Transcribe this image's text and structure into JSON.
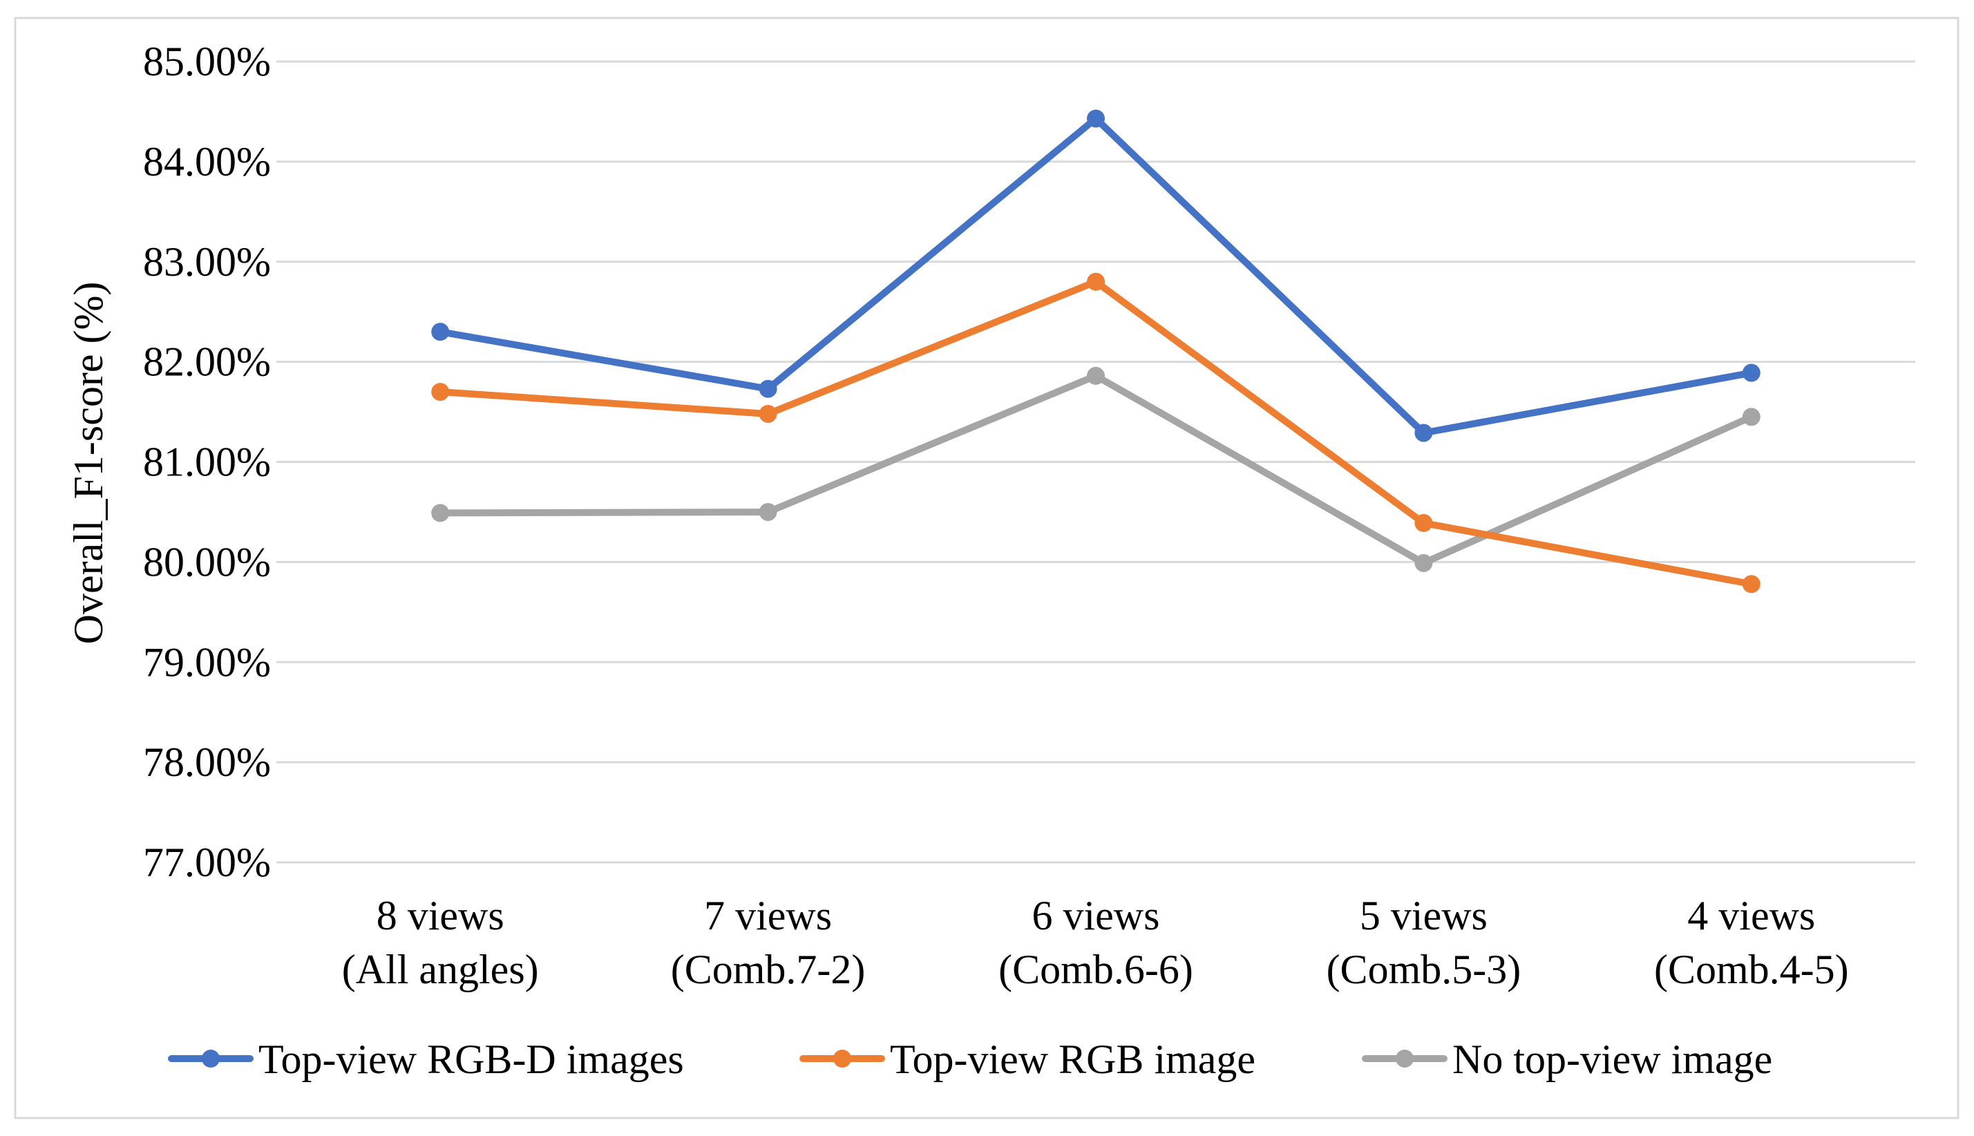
{
  "chart_data": {
    "type": "line",
    "title": "",
    "xlabel": "",
    "ylabel": "Overall_F1-score (%)",
    "ylim": [
      77,
      85
    ],
    "yticks": [
      "77.00%",
      "78.00%",
      "79.00%",
      "80.00%",
      "81.00%",
      "82.00%",
      "83.00%",
      "84.00%",
      "85.00%"
    ],
    "grid": true,
    "legend_position": "bottom",
    "categories": [
      [
        "8 views",
        "(All angles)"
      ],
      [
        "7 views",
        "(Comb.7-2)"
      ],
      [
        "6 views",
        "(Comb.6-6)"
      ],
      [
        "5 views",
        "(Comb.5-3)"
      ],
      [
        "4 views",
        "(Comb.4-5)"
      ]
    ],
    "series": [
      {
        "name": "Top-view RGB-D images",
        "color": "#4472C4",
        "values": [
          82.3,
          81.73,
          84.43,
          81.29,
          81.89
        ]
      },
      {
        "name": "Top-view RGB image",
        "color": "#ED7D31",
        "values": [
          81.7,
          81.48,
          82.8,
          80.39,
          79.78
        ]
      },
      {
        "name": "No top-view image",
        "color": "#A5A5A5",
        "values": [
          80.49,
          80.5,
          81.86,
          79.99,
          81.45
        ]
      }
    ]
  }
}
